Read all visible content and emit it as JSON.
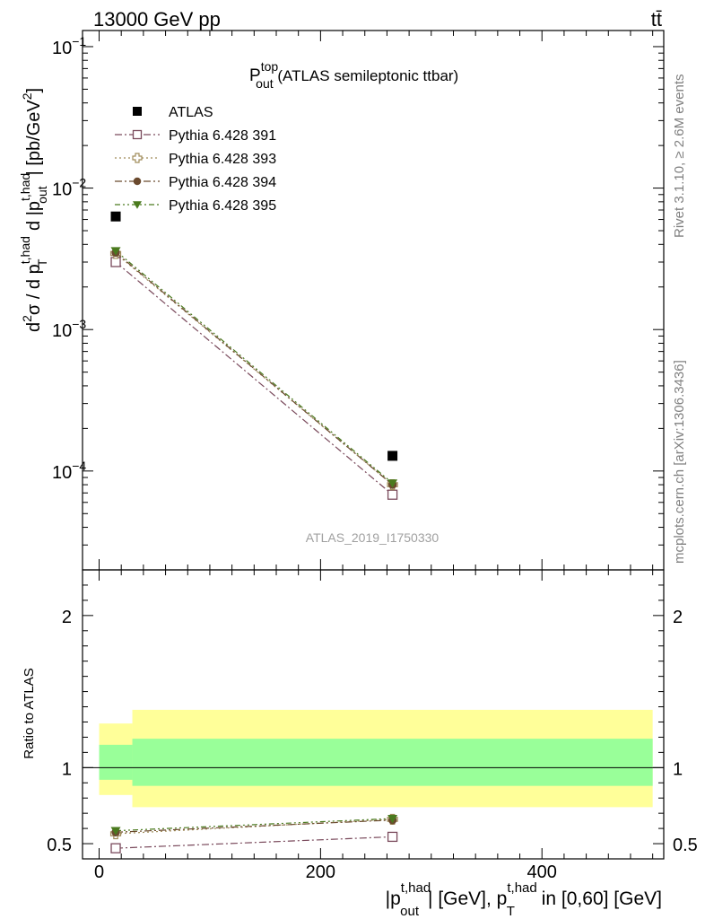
{
  "header": {
    "left": "13000 GeV pp",
    "right": "tt̄"
  },
  "side_text": {
    "rivet": "Rivet 3.1.10, ≥ 2.6M events",
    "mcplots": "mcplots.cern.ch [arXiv:1306.3436]"
  },
  "chart_data": [
    {
      "type": "scatter",
      "panel": "main",
      "title": {
        "main": "P",
        "sup": "top",
        "sub": "out",
        "rest": " (ATLAS semileptonic ttbar)"
      },
      "analysis_label": "ATLAS_2019_I1750330",
      "ylabel": {
        "p1": "d",
        "s1": "2",
        "p2": "σ / d p",
        "s2": "t,had",
        "s3": "T",
        "p3": " d |p",
        "s4": "t,had",
        "s5": "out",
        "p4": "| [pb/GeV",
        "s6": "2",
        "p5": "]"
      },
      "yscale": "log",
      "ylim": [
        2e-05,
        0.13
      ],
      "xlim": [
        -15,
        510
      ],
      "yticks": [
        {
          "value": 0.1,
          "base": "10",
          "exp": "−1"
        },
        {
          "value": 0.01,
          "base": "10",
          "exp": "−2"
        },
        {
          "value": 0.001,
          "base": "10",
          "exp": "−3"
        },
        {
          "value": 0.0001,
          "base": "10",
          "exp": "−4"
        }
      ],
      "legend_position": "top-left",
      "series": [
        {
          "name": "ATLAS",
          "color": "#000000",
          "marker": "filled-square",
          "line": "none",
          "x": [
            15,
            265
          ],
          "y": [
            0.0063,
            0.000128
          ]
        },
        {
          "name": "Pythia 6.428 391",
          "color": "#7a4a5c",
          "marker": "open-square",
          "line": "dash-dot",
          "x": [
            15,
            265
          ],
          "y": [
            0.003,
            6.8e-05
          ]
        },
        {
          "name": "Pythia 6.428 393",
          "color": "#a08c5a",
          "marker": "open-cross",
          "line": "dotted",
          "x": [
            15,
            265
          ],
          "y": [
            0.00345,
            8e-05
          ]
        },
        {
          "name": "Pythia 6.428 394",
          "color": "#6b4a2e",
          "marker": "filled-circle",
          "line": "dash-dot",
          "x": [
            15,
            265
          ],
          "y": [
            0.0035,
            8e-05
          ]
        },
        {
          "name": "Pythia 6.428 395",
          "color": "#4a7a1e",
          "marker": "filled-triangle-down",
          "line": "dash-dot-dot",
          "x": [
            15,
            265
          ],
          "y": [
            0.0036,
            8.2e-05
          ]
        }
      ]
    },
    {
      "type": "scatter",
      "panel": "ratio",
      "ylabel": "Ratio to ATLAS",
      "ylim": [
        0.4,
        2.3
      ],
      "xlim": [
        -15,
        510
      ],
      "yticks": [
        {
          "value": 0.5,
          "label": "0.5"
        },
        {
          "value": 1,
          "label": "1"
        },
        {
          "value": 2,
          "label": "2"
        }
      ],
      "xticks": [
        {
          "value": 0,
          "label": "0"
        },
        {
          "value": 200,
          "label": "200"
        },
        {
          "value": 400,
          "label": "400"
        }
      ],
      "xlabel": {
        "p1": "|p",
        "s1": "t,had",
        "s2": "out",
        "p2": "| [GeV], p",
        "s3": "t,had",
        "s4": "T",
        "p3": " in [0,60] [GeV]"
      },
      "bands": [
        {
          "x": [
            0,
            30
          ],
          "total": [
            0.82,
            1.29
          ],
          "stat": [
            0.92,
            1.15
          ]
        },
        {
          "x": [
            30,
            500
          ],
          "total": [
            0.74,
            1.38
          ],
          "stat": [
            0.88,
            1.19
          ]
        }
      ],
      "band_colors": {
        "total": "#ffff99",
        "stat": "#99ff99"
      },
      "series": [
        {
          "name": "Pythia 6.428 391",
          "color": "#7a4a5c",
          "x": [
            15,
            265
          ],
          "y": [
            0.47,
            0.545
          ]
        },
        {
          "name": "Pythia 6.428 393",
          "color": "#a08c5a",
          "x": [
            15,
            265
          ],
          "y": [
            0.565,
            0.66
          ]
        },
        {
          "name": "Pythia 6.428 394",
          "color": "#6b4a2e",
          "x": [
            15,
            265
          ],
          "y": [
            0.575,
            0.655
          ]
        },
        {
          "name": "Pythia 6.428 395",
          "color": "#4a7a1e",
          "x": [
            15,
            265
          ],
          "y": [
            0.585,
            0.665
          ]
        }
      ]
    }
  ]
}
